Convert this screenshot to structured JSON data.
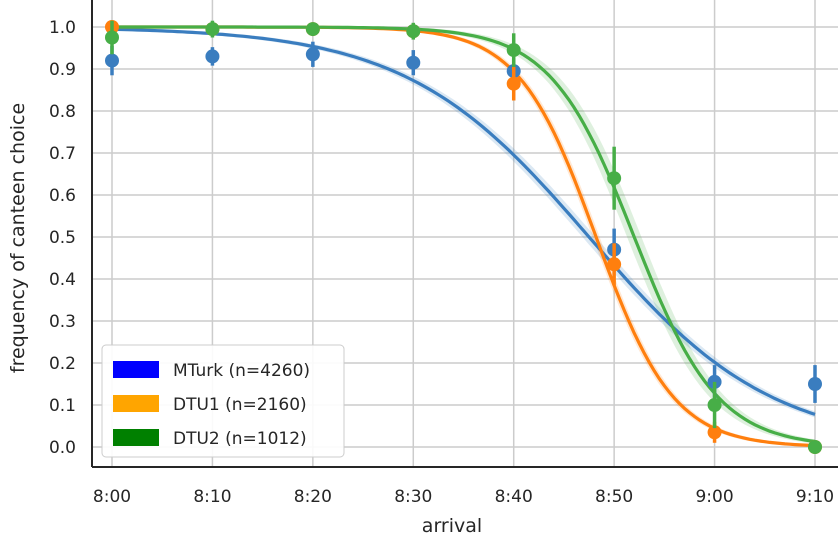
{
  "chart_data": {
    "type": "line",
    "title": "",
    "xlabel": "arrival",
    "ylabel": "frequency of canteen choice",
    "x_ticks": [
      "8:00",
      "8:10",
      "8:20",
      "8:30",
      "8:40",
      "8:50",
      "9:00",
      "9:10"
    ],
    "x_values": [
      0,
      10,
      20,
      30,
      40,
      50,
      60,
      70
    ],
    "xlim": [
      -2,
      72
    ],
    "ylim": [
      -0.05,
      1.05
    ],
    "y_ticks": [
      "0.0",
      "0.1",
      "0.2",
      "0.3",
      "0.4",
      "0.5",
      "0.6",
      "0.7",
      "0.8",
      "0.9",
      "1.0"
    ],
    "grid": true,
    "legend_position": "bottom-left",
    "series": [
      {
        "name": "MTurk (n=4260)",
        "legend_color": "#0000ff",
        "color": "#3a7dbf",
        "points": [
          0.92,
          0.93,
          0.935,
          0.915,
          0.895,
          0.47,
          0.155,
          0.15
        ],
        "error": [
          0.035,
          0.022,
          0.03,
          0.03,
          0.03,
          0.05,
          0.04,
          0.045
        ],
        "curve": {
          "midpoint": 47.5,
          "rate": 0.11
        },
        "band": 0.015
      },
      {
        "name": "DTU1  (n=2160)",
        "legend_color": "#ffa500",
        "color": "#ff7f0e",
        "points": [
          1.0,
          0.995,
          0.995,
          0.99,
          0.865,
          0.435,
          0.035,
          0.0
        ],
        "error": [
          0.01,
          0.01,
          0.01,
          0.015,
          0.04,
          0.05,
          0.025,
          0.005
        ],
        "curve": {
          "midpoint": 48.2,
          "rate": 0.26
        },
        "band": 0.02
      },
      {
        "name": "DTU2  (n=1012)",
        "legend_color": "#008000",
        "color": "#47ae47",
        "points": [
          0.975,
          0.995,
          0.995,
          0.99,
          0.945,
          0.64,
          0.1,
          0.0
        ],
        "error": [
          0.04,
          0.02,
          0.01,
          0.02,
          0.04,
          0.075,
          0.055,
          0.005
        ],
        "curve": {
          "midpoint": 52.0,
          "rate": 0.24
        },
        "band": 0.04
      }
    ]
  }
}
